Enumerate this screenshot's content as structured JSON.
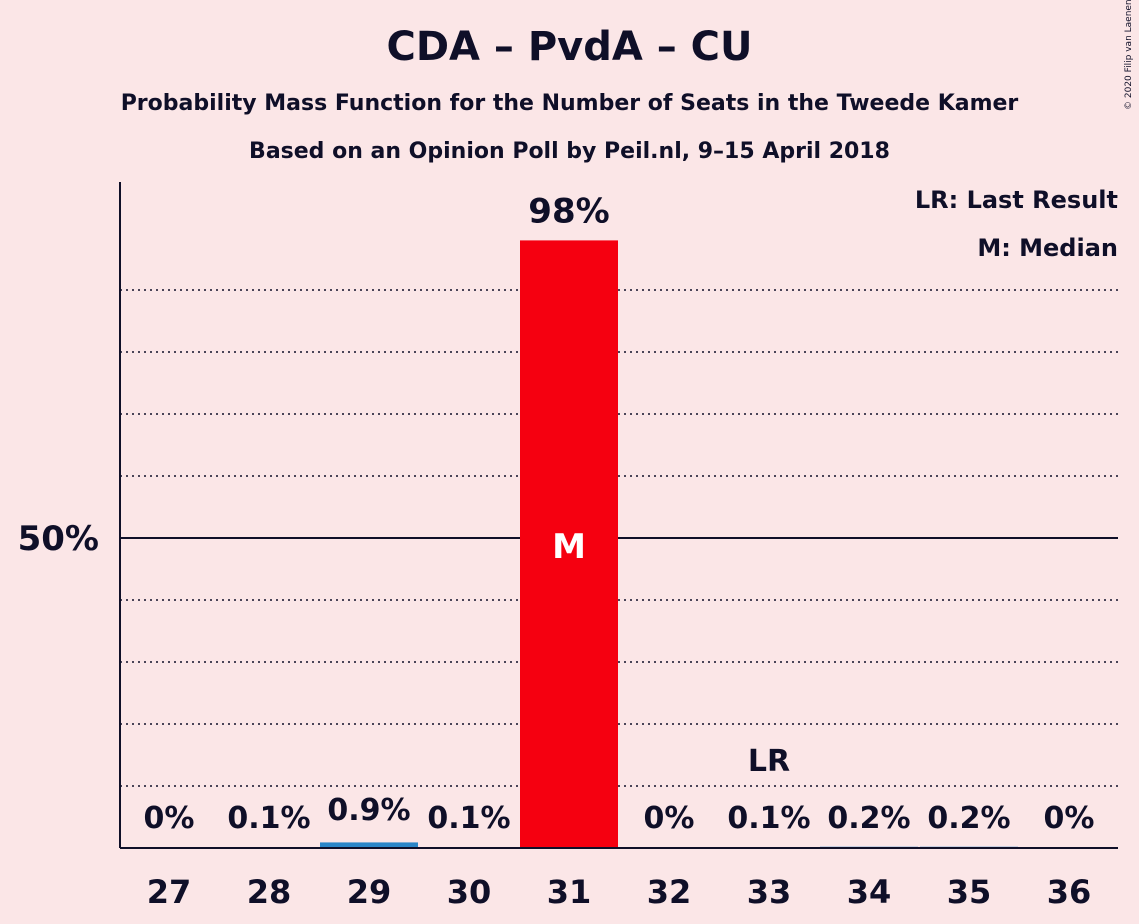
{
  "chart_data": {
    "type": "bar",
    "title": "CDA – PvdA – CU",
    "subtitle": "Probability Mass Function for the Number of Seats in the Tweede Kamer",
    "subtitle2": "Based on an Opinion Poll by Peil.nl, 9–15 April 2018",
    "categories": [
      "27",
      "28",
      "29",
      "30",
      "31",
      "32",
      "33",
      "34",
      "35",
      "36"
    ],
    "values": [
      0,
      0.1,
      0.9,
      0.1,
      98,
      0,
      0.1,
      0.2,
      0.2,
      0
    ],
    "value_labels": [
      "0%",
      "0.1%",
      "0.9%",
      "0.1%",
      "98%",
      "0%",
      "0.1%",
      "0.2%",
      "0.2%",
      "0%"
    ],
    "ylim": [
      0,
      100
    ],
    "ytick_label": "50%",
    "ytick_value": 50,
    "gridlines": [
      10,
      20,
      30,
      40,
      60,
      70,
      80,
      90
    ],
    "median_seat": "31",
    "median_marker": "M",
    "last_result_seat": "33",
    "last_result_marker": "LR",
    "legend": [
      "LR: Last Result",
      "M: Median"
    ],
    "colors": {
      "median": "#F50010",
      "other": "#2A86C8",
      "text": "#0F0F28",
      "background": "#FBE6E7"
    }
  },
  "copyright": "© 2020 Filip van Laenen"
}
